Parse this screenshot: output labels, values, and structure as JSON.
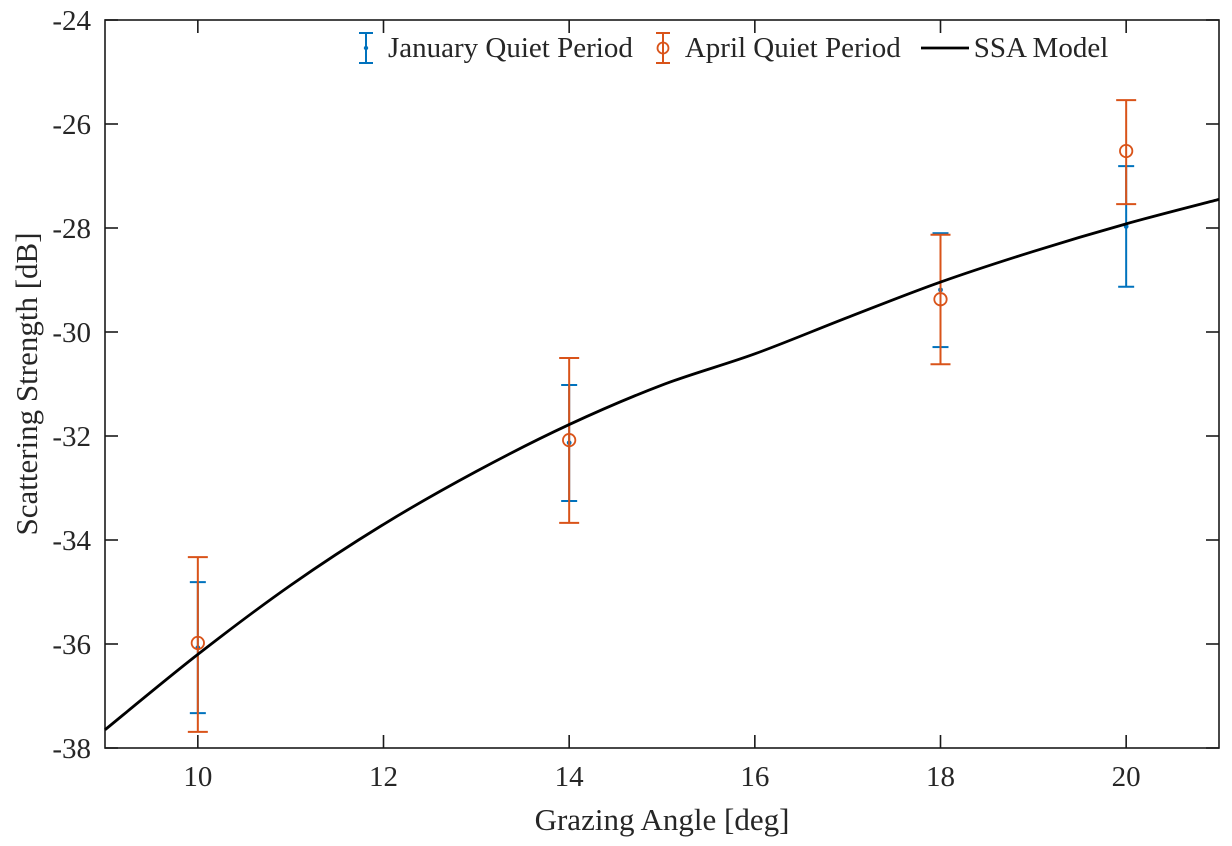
{
  "figure": {
    "background": "#ffffff",
    "axis_color": "#1a1a1a",
    "tick_label_color": "#262626"
  },
  "chart_data": {
    "type": "errorbar+line",
    "title": "",
    "xlabel": "Grazing Angle [deg]",
    "ylabel": "Scattering Strength [dB]",
    "xlim": [
      9,
      21
    ],
    "ylim": [
      -38,
      -24
    ],
    "xticks": [
      10,
      12,
      14,
      16,
      18,
      20
    ],
    "yticks": [
      -24,
      -26,
      -28,
      -30,
      -32,
      -34,
      -36,
      -38
    ],
    "grid": false,
    "legend_position": "top-inside-horizontal",
    "series": [
      {
        "name": "January Quiet Period",
        "type": "errorbar",
        "marker": "dot",
        "color": "#0072BD",
        "x": [
          10,
          14,
          18,
          20
        ],
        "y": [
          -36.07,
          -32.13,
          -29.19,
          -27.97
        ],
        "y_upper": [
          -34.81,
          -31.02,
          -28.1,
          -26.81
        ],
        "y_lower": [
          -37.33,
          -33.25,
          -30.29,
          -29.13
        ]
      },
      {
        "name": "April Quiet Period",
        "type": "errorbar",
        "marker": "circle",
        "color": "#D95319",
        "x": [
          10,
          14,
          18,
          20
        ],
        "y": [
          -35.98,
          -32.08,
          -29.37,
          -26.52
        ],
        "y_upper": [
          -34.33,
          -30.5,
          -28.13,
          -25.54
        ],
        "y_lower": [
          -37.69,
          -33.67,
          -30.62,
          -27.54
        ]
      },
      {
        "name": "SSA Model",
        "type": "line",
        "color": "#000000",
        "x": [
          9,
          10,
          11,
          12,
          13,
          14,
          15,
          16,
          17,
          18,
          19,
          20,
          21
        ],
        "y": [
          -37.65,
          -36.2,
          -34.87,
          -33.7,
          -32.68,
          -31.78,
          -31.02,
          -30.42,
          -29.72,
          -29.04,
          -28.45,
          -27.92,
          -27.45
        ]
      }
    ]
  }
}
